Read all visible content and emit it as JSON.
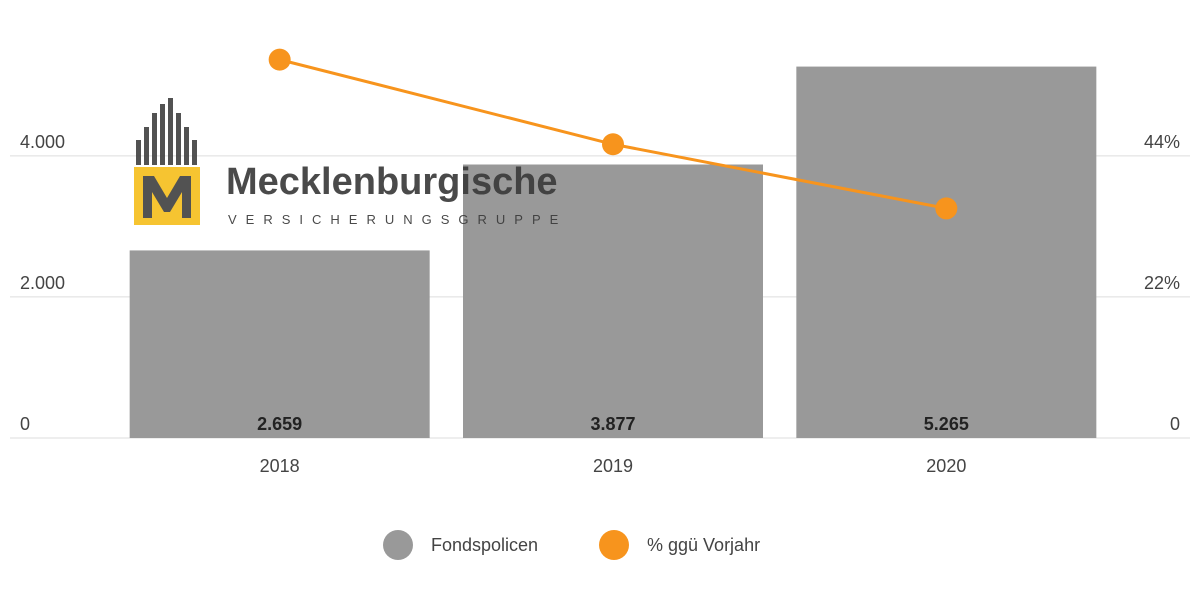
{
  "logo": {
    "name": "Mecklenburgische",
    "tagline": "VERSICHERUNGSGRUPPE"
  },
  "chart_data": {
    "type": "bar-line",
    "categories": [
      "2018",
      "2019",
      "2020"
    ],
    "series": [
      {
        "name": "Fondspolicen",
        "type": "bar",
        "color": "#999999",
        "values": [
          2659,
          3877,
          5265
        ],
        "value_labels": [
          "2.659",
          "3.877",
          "5.265"
        ]
      },
      {
        "name": "% ggü Vorjahr",
        "type": "line",
        "axis": "y2",
        "color": "#f7941d",
        "values": [
          59,
          45.8,
          35.8
        ]
      }
    ],
    "ylim": [
      0,
      5500
    ],
    "yticks": [
      0,
      {
        "value": 2000,
        "label": "2.000"
      },
      {
        "value": 4000,
        "label": "4.000"
      }
    ],
    "y2lim": [
      0,
      60.5
    ],
    "y2ticks": [
      0,
      {
        "value": 22,
        "label": "22%"
      },
      {
        "value": 44,
        "label": "44%"
      }
    ],
    "grid": true,
    "legend": "bottom"
  }
}
